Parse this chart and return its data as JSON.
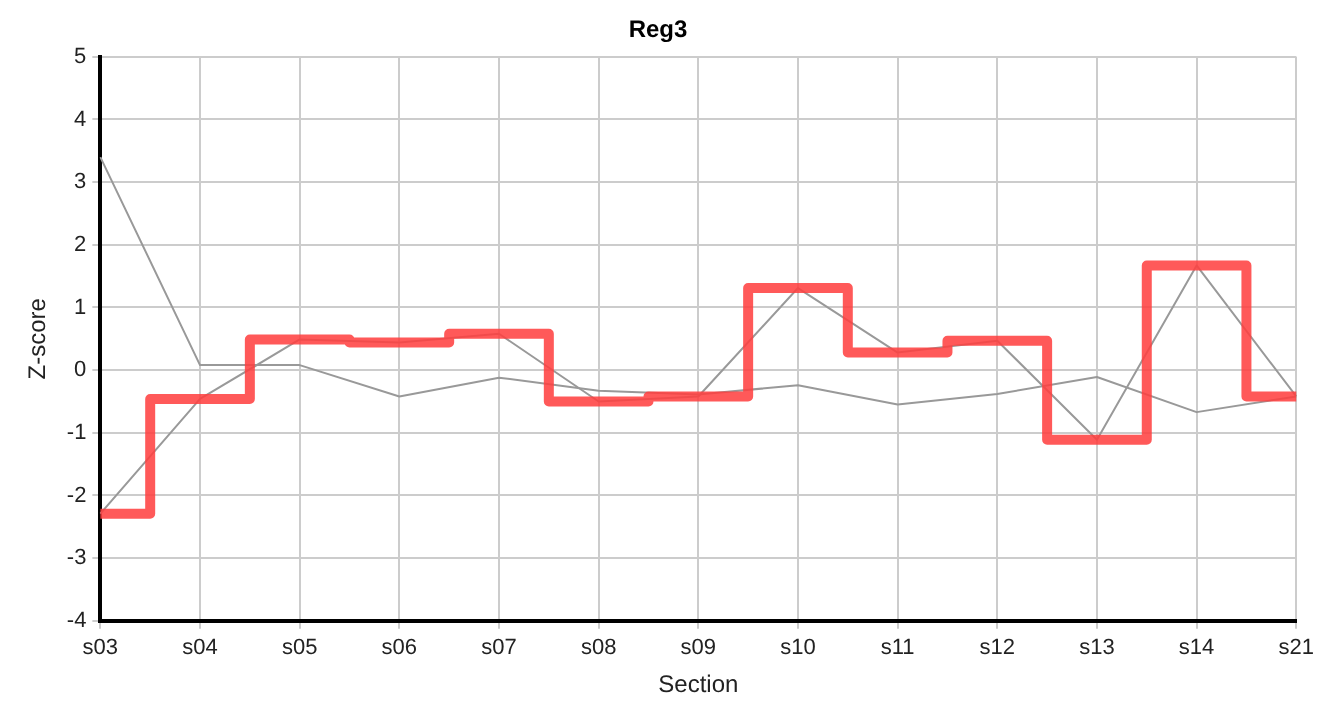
{
  "chart_data": {
    "type": "line",
    "title": "Reg3",
    "xlabel": "Section",
    "ylabel": "Z-score",
    "categories": [
      "s03",
      "s04",
      "s05",
      "s06",
      "s07",
      "s08",
      "s09",
      "s10",
      "s11",
      "s12",
      "s13",
      "s14",
      "s21"
    ],
    "series": [
      {
        "color": "#999999",
        "values": [
          3.4,
          0.08,
          0.08,
          -0.42,
          -0.12,
          -0.33,
          -0.39,
          -0.24,
          -0.55,
          -0.38,
          -0.11,
          -0.67,
          -0.42
        ]
      },
      {
        "color": "#999999",
        "values": [
          -2.29,
          -0.46,
          0.49,
          0.44,
          0.58,
          -0.5,
          -0.42,
          1.31,
          0.28,
          0.47,
          -1.11,
          1.67,
          -0.42
        ]
      },
      {
        "type": "step",
        "color": "#ff4040",
        "values": [
          -2.29,
          -0.46,
          0.49,
          0.44,
          0.58,
          -0.5,
          -0.42,
          1.31,
          0.28,
          0.47,
          -1.11,
          1.67,
          -0.42
        ]
      }
    ],
    "ylim": [
      -4,
      5
    ],
    "yticks": [
      -4,
      -3,
      -2,
      -1,
      0,
      1,
      2,
      3,
      4,
      5
    ],
    "grid": true,
    "legend": false,
    "marker": "none",
    "line_style": "solid"
  }
}
